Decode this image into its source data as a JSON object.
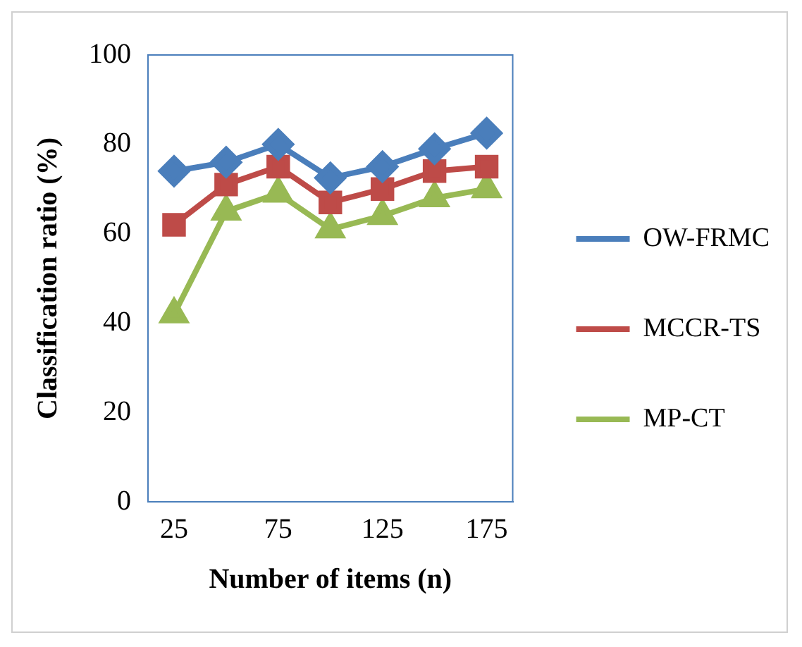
{
  "chart_data": {
    "type": "line",
    "xlabel": "Number of items (n)",
    "ylabel": "Classification ratio (%)",
    "categories": [
      "25",
      null,
      "75",
      null,
      "125",
      null,
      "175"
    ],
    "series": [
      {
        "name": "OW-FRMC",
        "color": "#4a7ebb",
        "marker": "diamond",
        "values": [
          74,
          76,
          80,
          72.5,
          75,
          79,
          82.5
        ]
      },
      {
        "name": "MCCR-TS",
        "color": "#be4b48",
        "marker": "square",
        "values": [
          62,
          71,
          75,
          67,
          70,
          74,
          75
        ]
      },
      {
        "name": "MP-CT",
        "color": "#98b954",
        "marker": "triangle",
        "values": [
          42,
          65,
          69,
          61,
          64,
          68,
          70
        ]
      }
    ],
    "ylim": [
      0,
      100
    ],
    "yticks": [
      0,
      20,
      40,
      60,
      80,
      100
    ],
    "grid": false,
    "legend": "right"
  }
}
